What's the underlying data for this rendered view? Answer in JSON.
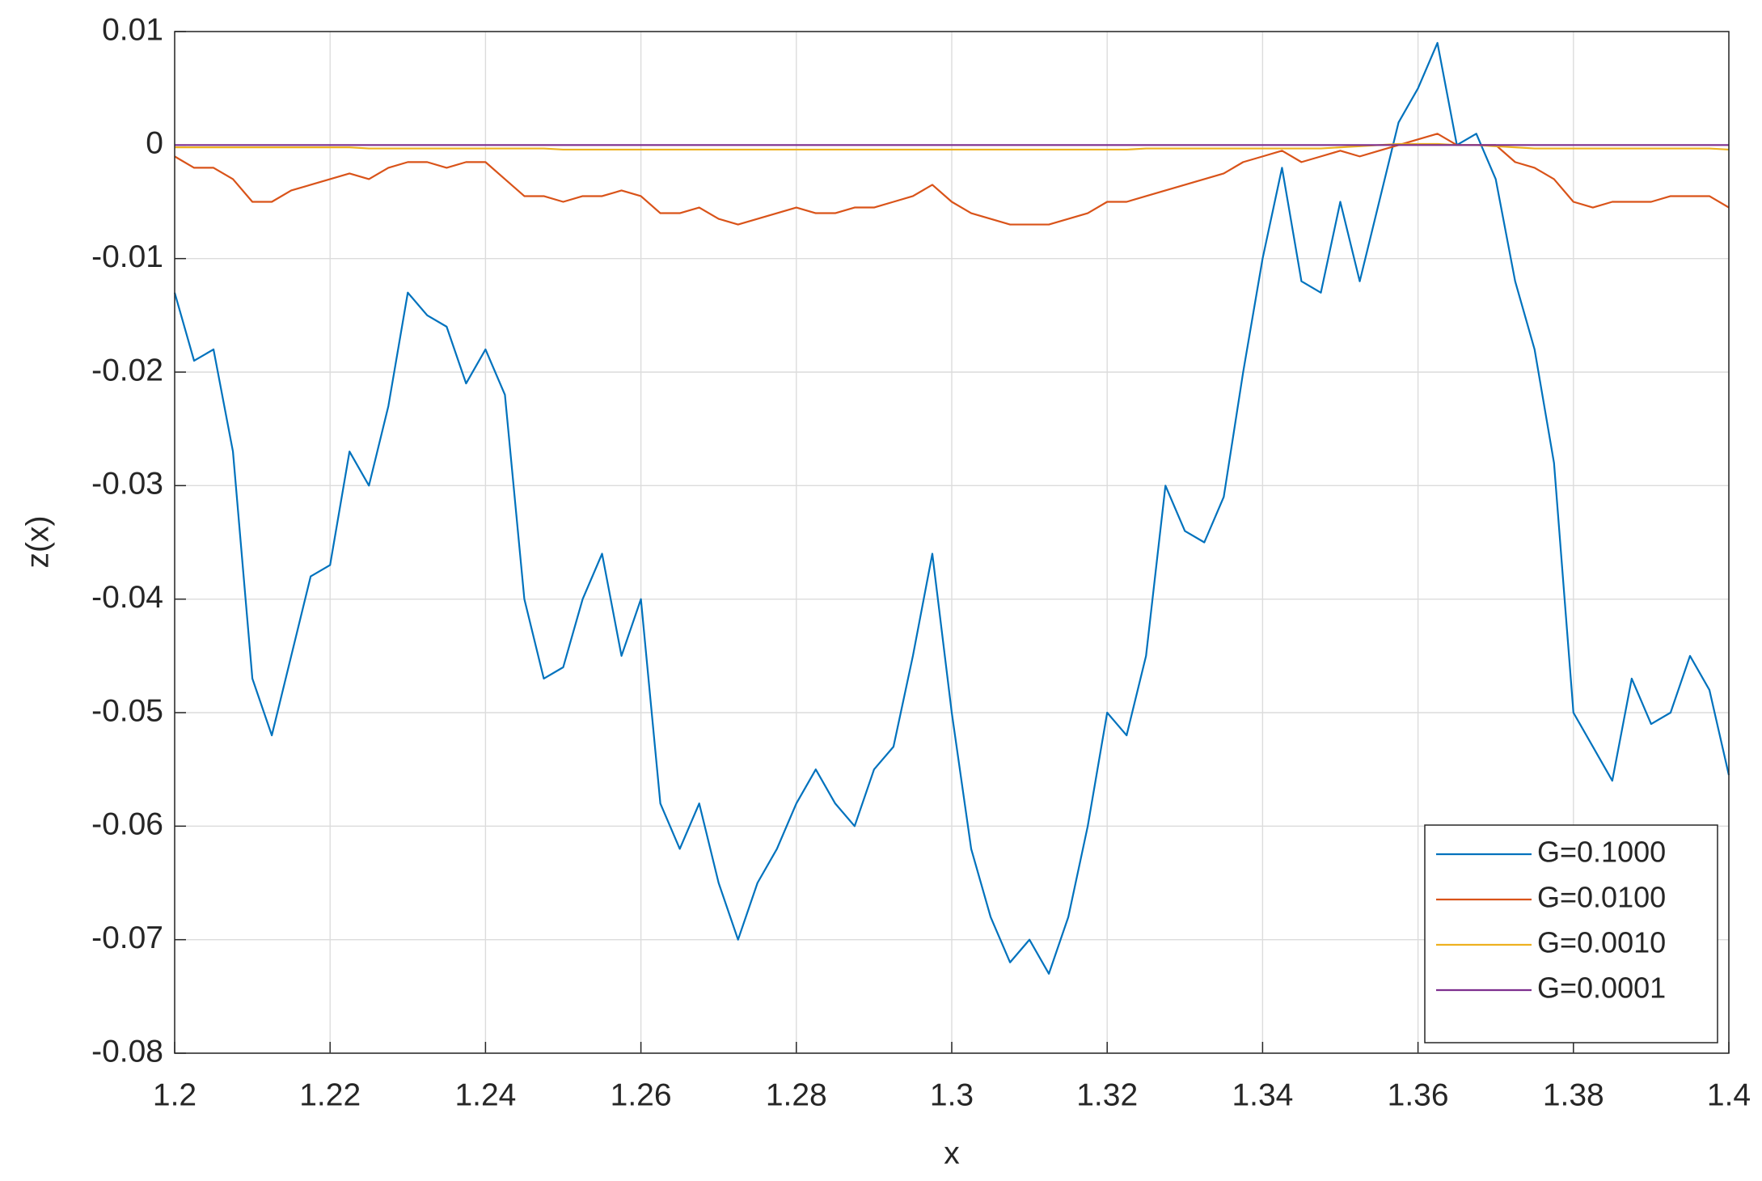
{
  "chart_data": {
    "type": "line",
    "xlabel": "x",
    "ylabel": "z(x)",
    "x": [
      1.2,
      1.2025,
      1.205,
      1.2075,
      1.21,
      1.2125,
      1.215,
      1.2175,
      1.22,
      1.2225,
      1.225,
      1.2275,
      1.23,
      1.2325,
      1.235,
      1.2375,
      1.24,
      1.2425,
      1.245,
      1.2475,
      1.25,
      1.2525,
      1.255,
      1.2575,
      1.26,
      1.2625,
      1.265,
      1.2675,
      1.27,
      1.2725,
      1.275,
      1.2775,
      1.28,
      1.2825,
      1.285,
      1.2875,
      1.29,
      1.2925,
      1.295,
      1.2975,
      1.3,
      1.3025,
      1.305,
      1.3075,
      1.31,
      1.3125,
      1.315,
      1.3175,
      1.32,
      1.3225,
      1.325,
      1.3275,
      1.33,
      1.3325,
      1.335,
      1.3375,
      1.34,
      1.3425,
      1.345,
      1.3475,
      1.35,
      1.3525,
      1.355,
      1.3575,
      1.36,
      1.3625,
      1.365,
      1.3675,
      1.37,
      1.3725,
      1.375,
      1.3775,
      1.38,
      1.3825,
      1.385,
      1.3875,
      1.39,
      1.3925,
      1.395,
      1.3975,
      1.4
    ],
    "series": [
      {
        "name": "G=0.1000",
        "color": "#0072bd",
        "values": [
          -0.013,
          -0.019,
          -0.018,
          -0.027,
          -0.047,
          -0.052,
          -0.045,
          -0.038,
          -0.037,
          -0.027,
          -0.03,
          -0.023,
          -0.013,
          -0.015,
          -0.016,
          -0.021,
          -0.018,
          -0.022,
          -0.04,
          -0.047,
          -0.046,
          -0.04,
          -0.036,
          -0.045,
          -0.04,
          -0.058,
          -0.062,
          -0.058,
          -0.065,
          -0.07,
          -0.065,
          -0.062,
          -0.058,
          -0.055,
          -0.058,
          -0.06,
          -0.055,
          -0.053,
          -0.045,
          -0.036,
          -0.05,
          -0.062,
          -0.068,
          -0.072,
          -0.07,
          -0.073,
          -0.068,
          -0.06,
          -0.05,
          -0.052,
          -0.045,
          -0.03,
          -0.034,
          -0.035,
          -0.031,
          -0.02,
          -0.01,
          -0.002,
          -0.012,
          -0.013,
          -0.005,
          -0.012,
          -0.005,
          0.002,
          0.005,
          0.009,
          0,
          0.001,
          -0.003,
          -0.012,
          -0.018,
          -0.028,
          -0.05,
          -0.053,
          -0.056,
          -0.047,
          -0.051,
          -0.05,
          -0.045,
          -0.048,
          -0.0555
        ]
      },
      {
        "name": "G=0.0100",
        "color": "#d95319",
        "values": [
          -0.001,
          -0.002,
          -0.002,
          -0.003,
          -0.005,
          -0.005,
          -0.004,
          -0.0035,
          -0.003,
          -0.0025,
          -0.003,
          -0.002,
          -0.0015,
          -0.0015,
          -0.002,
          -0.0015,
          -0.0015,
          -0.003,
          -0.0045,
          -0.0045,
          -0.005,
          -0.0045,
          -0.0045,
          -0.004,
          -0.0045,
          -0.006,
          -0.006,
          -0.0055,
          -0.0065,
          -0.007,
          -0.0065,
          -0.006,
          -0.0055,
          -0.006,
          -0.006,
          -0.0055,
          -0.0055,
          -0.005,
          -0.0045,
          -0.0035,
          -0.005,
          -0.006,
          -0.0065,
          -0.007,
          -0.007,
          -0.007,
          -0.0065,
          -0.006,
          -0.005,
          -0.005,
          -0.0045,
          -0.004,
          -0.0035,
          -0.003,
          -0.0025,
          -0.0015,
          -0.001,
          -0.0005,
          -0.0015,
          -0.001,
          -0.0005,
          -0.001,
          -0.0005,
          0,
          0.0005,
          0.001,
          0,
          0,
          0,
          -0.0015,
          -0.002,
          -0.003,
          -0.005,
          -0.0055,
          -0.005,
          -0.005,
          -0.005,
          -0.0045,
          -0.0045,
          -0.0045,
          -0.0055
        ]
      },
      {
        "name": "G=0.0010",
        "color": "#edb120",
        "values": [
          -0.0002,
          -0.0002,
          -0.0002,
          -0.0002,
          -0.0002,
          -0.0002,
          -0.0002,
          -0.0002,
          -0.0002,
          -0.0002,
          -0.0003,
          -0.0003,
          -0.0003,
          -0.0003,
          -0.0003,
          -0.0003,
          -0.0003,
          -0.0003,
          -0.0003,
          -0.0003,
          -0.0004,
          -0.0004,
          -0.0004,
          -0.0004,
          -0.0004,
          -0.0004,
          -0.0004,
          -0.0004,
          -0.0004,
          -0.0004,
          -0.0004,
          -0.0004,
          -0.0004,
          -0.0004,
          -0.0004,
          -0.0004,
          -0.0004,
          -0.0004,
          -0.0004,
          -0.0004,
          -0.0004,
          -0.0004,
          -0.0004,
          -0.0004,
          -0.0004,
          -0.0004,
          -0.0004,
          -0.0004,
          -0.0004,
          -0.0004,
          -0.0003,
          -0.0003,
          -0.0003,
          -0.0003,
          -0.0003,
          -0.0003,
          -0.0003,
          -0.0003,
          -0.0003,
          -0.0003,
          -0.0002,
          -0.0001,
          0,
          0.0001,
          0.0001,
          0.0001,
          0,
          0,
          -0.0001,
          -0.0002,
          -0.0003,
          -0.0003,
          -0.0003,
          -0.0003,
          -0.0003,
          -0.0003,
          -0.0003,
          -0.0003,
          -0.0003,
          -0.0003,
          -0.0004
        ]
      },
      {
        "name": "G=0.0001",
        "color": "#7e2f8e",
        "values": [
          0,
          0,
          0,
          0,
          0,
          0,
          0,
          0,
          0,
          0,
          0,
          0,
          0,
          0,
          0,
          0,
          0,
          0,
          0,
          0,
          0,
          0,
          0,
          0,
          0,
          0,
          0,
          0,
          0,
          0,
          0,
          0,
          0,
          0,
          0,
          0,
          0,
          0,
          0,
          0,
          0,
          0,
          0,
          0,
          0,
          0,
          0,
          0,
          0,
          0,
          0,
          0,
          0,
          0,
          0,
          0,
          0,
          0,
          0,
          0,
          0,
          0,
          0,
          0,
          0,
          0,
          0,
          0,
          0,
          0,
          0,
          0,
          0,
          0,
          0,
          0,
          0,
          0,
          0,
          0,
          0
        ]
      }
    ],
    "xlim": [
      1.2,
      1.4
    ],
    "xticks": [
      1.2,
      1.22,
      1.24,
      1.26,
      1.28,
      1.3,
      1.32,
      1.34,
      1.36,
      1.38,
      1.4
    ],
    "ylim": [
      -0.08,
      0.01
    ],
    "yticks": [
      0.01,
      0,
      -0.01,
      -0.02,
      -0.03,
      -0.04,
      -0.05,
      -0.06,
      -0.07,
      -0.08
    ],
    "grid": true,
    "legend": "southeast"
  }
}
